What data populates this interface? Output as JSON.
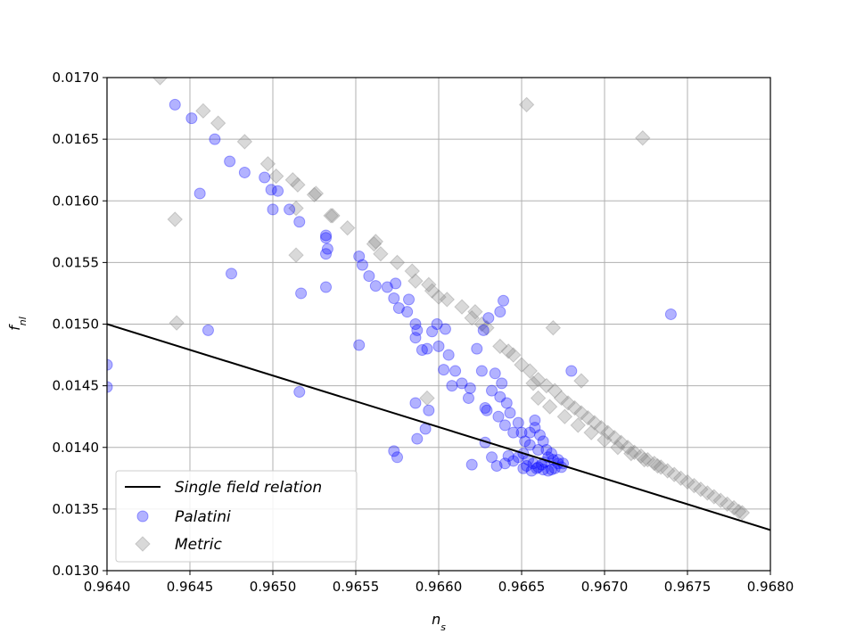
{
  "chart_data": {
    "type": "scatter",
    "title": "",
    "xlabel": "n_s",
    "ylabel": "f_nl",
    "xlim": [
      0.964,
      0.968
    ],
    "ylim": [
      0.013,
      0.017
    ],
    "x_ticks": [
      "0.9640",
      "0.9645",
      "0.9650",
      "0.9655",
      "0.9660",
      "0.9665",
      "0.9670",
      "0.9675",
      "0.9680"
    ],
    "y_ticks": [
      "0.0130",
      "0.0135",
      "0.0140",
      "0.0145",
      "0.0150",
      "0.0155",
      "0.0160",
      "0.0165",
      "0.0170"
    ],
    "grid": true,
    "legend_position": "lower-left",
    "series": [
      {
        "name": "Single field relation",
        "kind": "line",
        "color": "#000000",
        "points": [
          [
            0.964,
            0.015
          ],
          [
            0.968,
            0.01333
          ]
        ]
      },
      {
        "name": "Palatini",
        "kind": "scatter",
        "marker": "circle",
        "color": "#0000ff",
        "points": [
          [
            0.964,
            0.01467
          ],
          [
            0.964,
            0.01449
          ],
          [
            0.96441,
            0.01678
          ],
          [
            0.96451,
            0.01667
          ],
          [
            0.96465,
            0.0165
          ],
          [
            0.96456,
            0.01606
          ],
          [
            0.96474,
            0.01632
          ],
          [
            0.96483,
            0.01623
          ],
          [
            0.96495,
            0.01619
          ],
          [
            0.96499,
            0.01609
          ],
          [
            0.96503,
            0.01608
          ],
          [
            0.965,
            0.01593
          ],
          [
            0.9651,
            0.01593
          ],
          [
            0.96516,
            0.01583
          ],
          [
            0.96475,
            0.01541
          ],
          [
            0.96461,
            0.01495
          ],
          [
            0.96517,
            0.01525
          ],
          [
            0.96516,
            0.01445
          ],
          [
            0.96532,
            0.01572
          ],
          [
            0.96532,
            0.0157
          ],
          [
            0.96533,
            0.01561
          ],
          [
            0.96532,
            0.01557
          ],
          [
            0.96532,
            0.0153
          ],
          [
            0.96552,
            0.01555
          ],
          [
            0.96554,
            0.01548
          ],
          [
            0.96558,
            0.01539
          ],
          [
            0.96552,
            0.01483
          ],
          [
            0.96562,
            0.01531
          ],
          [
            0.96569,
            0.0153
          ],
          [
            0.96574,
            0.01533
          ],
          [
            0.96573,
            0.01521
          ],
          [
            0.96576,
            0.01513
          ],
          [
            0.96582,
            0.0152
          ],
          [
            0.96581,
            0.0151
          ],
          [
            0.96586,
            0.015
          ],
          [
            0.96587,
            0.01495
          ],
          [
            0.96586,
            0.01489
          ],
          [
            0.9659,
            0.01479
          ],
          [
            0.96593,
            0.0148
          ],
          [
            0.96596,
            0.01494
          ],
          [
            0.96599,
            0.015
          ],
          [
            0.96604,
            0.01496
          ],
          [
            0.966,
            0.01482
          ],
          [
            0.96606,
            0.01475
          ],
          [
            0.96603,
            0.01463
          ],
          [
            0.9661,
            0.01462
          ],
          [
            0.96608,
            0.0145
          ],
          [
            0.96614,
            0.01452
          ],
          [
            0.96619,
            0.01448
          ],
          [
            0.96618,
            0.0144
          ],
          [
            0.96623,
            0.0148
          ],
          [
            0.96627,
            0.01495
          ],
          [
            0.9663,
            0.01505
          ],
          [
            0.96637,
            0.0151
          ],
          [
            0.96639,
            0.01519
          ],
          [
            0.96634,
            0.0146
          ],
          [
            0.96638,
            0.01452
          ],
          [
            0.96632,
            0.01446
          ],
          [
            0.96637,
            0.01441
          ],
          [
            0.96626,
            0.01462
          ],
          [
            0.96628,
            0.01432
          ],
          [
            0.96629,
            0.0143
          ],
          [
            0.96636,
            0.01425
          ],
          [
            0.96641,
            0.01436
          ],
          [
            0.96643,
            0.01428
          ],
          [
            0.9664,
            0.01418
          ],
          [
            0.96645,
            0.01412
          ],
          [
            0.96648,
            0.0142
          ],
          [
            0.9665,
            0.01412
          ],
          [
            0.96652,
            0.01405
          ],
          [
            0.96655,
            0.01402
          ],
          [
            0.96655,
            0.01412
          ],
          [
            0.96658,
            0.01416
          ],
          [
            0.96658,
            0.01422
          ],
          [
            0.96661,
            0.0141
          ],
          [
            0.96663,
            0.01405
          ],
          [
            0.9666,
            0.01398
          ],
          [
            0.96665,
            0.01398
          ],
          [
            0.96668,
            0.01395
          ],
          [
            0.96672,
            0.0139
          ],
          [
            0.96675,
            0.01387
          ],
          [
            0.96674,
            0.01384
          ],
          [
            0.9667,
            0.01383
          ],
          [
            0.96669,
            0.0139
          ],
          [
            0.96666,
            0.01392
          ],
          [
            0.96664,
            0.01388
          ],
          [
            0.96662,
            0.01386
          ],
          [
            0.9666,
            0.01384
          ],
          [
            0.96657,
            0.01387
          ],
          [
            0.96654,
            0.0139
          ],
          [
            0.96651,
            0.01395
          ],
          [
            0.96648,
            0.01392
          ],
          [
            0.96645,
            0.01389
          ],
          [
            0.96642,
            0.01393
          ],
          [
            0.9664,
            0.01387
          ],
          [
            0.96628,
            0.01404
          ],
          [
            0.96635,
            0.01385
          ],
          [
            0.96632,
            0.01392
          ],
          [
            0.9662,
            0.01386
          ],
          [
            0.96594,
            0.0143
          ],
          [
            0.96592,
            0.01415
          ],
          [
            0.96586,
            0.01436
          ],
          [
            0.96587,
            0.01407
          ],
          [
            0.96575,
            0.01392
          ],
          [
            0.96573,
            0.01397
          ],
          [
            0.9668,
            0.01462
          ],
          [
            0.9674,
            0.01508
          ],
          [
            0.96672,
            0.01387
          ],
          [
            0.96668,
            0.01382
          ],
          [
            0.96666,
            0.01381
          ],
          [
            0.96663,
            0.01382
          ],
          [
            0.96659,
            0.01383
          ],
          [
            0.96653,
            0.01385
          ],
          [
            0.96651,
            0.01383
          ],
          [
            0.96656,
            0.01381
          ]
        ]
      },
      {
        "name": "Metric",
        "kind": "scatter",
        "marker": "diamond",
        "color": "#808080",
        "points": [
          [
            0.96432,
            0.017
          ],
          [
            0.96458,
            0.01673
          ],
          [
            0.96467,
            0.01663
          ],
          [
            0.96483,
            0.01648
          ],
          [
            0.96497,
            0.0163
          ],
          [
            0.96502,
            0.0162
          ],
          [
            0.96512,
            0.01617
          ],
          [
            0.96515,
            0.01613
          ],
          [
            0.96525,
            0.01605
          ],
          [
            0.96526,
            0.01606
          ],
          [
            0.96514,
            0.01594
          ],
          [
            0.96536,
            0.01588
          ],
          [
            0.96535,
            0.01588
          ],
          [
            0.96545,
            0.01578
          ],
          [
            0.96441,
            0.01585
          ],
          [
            0.96514,
            0.01556
          ],
          [
            0.96562,
            0.01567
          ],
          [
            0.96561,
            0.01565
          ],
          [
            0.96565,
            0.01557
          ],
          [
            0.96575,
            0.0155
          ],
          [
            0.96584,
            0.01543
          ],
          [
            0.96586,
            0.01535
          ],
          [
            0.96594,
            0.01532
          ],
          [
            0.96596,
            0.01527
          ],
          [
            0.966,
            0.01522
          ],
          [
            0.96605,
            0.0152
          ],
          [
            0.96614,
            0.01514
          ],
          [
            0.96622,
            0.0151
          ],
          [
            0.9662,
            0.01505
          ],
          [
            0.96626,
            0.015
          ],
          [
            0.96629,
            0.01497
          ],
          [
            0.96637,
            0.01482
          ],
          [
            0.96642,
            0.01478
          ],
          [
            0.96645,
            0.01475
          ],
          [
            0.9665,
            0.01467
          ],
          [
            0.96655,
            0.01462
          ],
          [
            0.9666,
            0.01455
          ],
          [
            0.96665,
            0.0145
          ],
          [
            0.9667,
            0.01446
          ],
          [
            0.96674,
            0.0144
          ],
          [
            0.96678,
            0.01436
          ],
          [
            0.96682,
            0.01432
          ],
          [
            0.96686,
            0.01428
          ],
          [
            0.9669,
            0.01424
          ],
          [
            0.96694,
            0.0142
          ],
          [
            0.96698,
            0.01416
          ],
          [
            0.96702,
            0.01412
          ],
          [
            0.96706,
            0.01408
          ],
          [
            0.9671,
            0.01404
          ],
          [
            0.96714,
            0.014
          ],
          [
            0.96718,
            0.01396
          ],
          [
            0.96722,
            0.01393
          ],
          [
            0.96726,
            0.0139
          ],
          [
            0.9673,
            0.01387
          ],
          [
            0.96734,
            0.01384
          ],
          [
            0.96738,
            0.01381
          ],
          [
            0.96742,
            0.01378
          ],
          [
            0.96746,
            0.01375
          ],
          [
            0.9675,
            0.01372
          ],
          [
            0.96754,
            0.01369
          ],
          [
            0.96758,
            0.01366
          ],
          [
            0.96762,
            0.01363
          ],
          [
            0.96766,
            0.0136
          ],
          [
            0.9677,
            0.01357
          ],
          [
            0.96774,
            0.01354
          ],
          [
            0.96778,
            0.01351
          ],
          [
            0.96781,
            0.01348
          ],
          [
            0.96783,
            0.01347
          ],
          [
            0.96653,
            0.01678
          ],
          [
            0.96723,
            0.01651
          ],
          [
            0.96669,
            0.01497
          ],
          [
            0.96686,
            0.01454
          ],
          [
            0.96442,
            0.01501
          ],
          [
            0.96593,
            0.0144
          ],
          [
            0.96657,
            0.01452
          ],
          [
            0.9666,
            0.0144
          ],
          [
            0.96667,
            0.01433
          ],
          [
            0.96676,
            0.01425
          ],
          [
            0.96684,
            0.01418
          ],
          [
            0.96692,
            0.01412
          ],
          [
            0.967,
            0.01406
          ],
          [
            0.96708,
            0.014
          ],
          [
            0.96716,
            0.01395
          ],
          [
            0.96724,
            0.0139
          ],
          [
            0.96732,
            0.01385
          ]
        ]
      }
    ]
  }
}
